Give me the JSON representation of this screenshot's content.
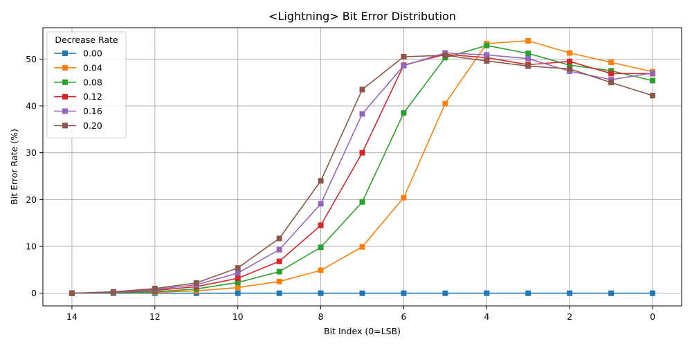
{
  "chart_data": {
    "type": "line",
    "title": "<Lightning> Bit Error Distribution",
    "xlabel": "Bit Index (0=LSB)",
    "ylabel": "Bit Error Rate (%)",
    "x": [
      14,
      13,
      12,
      11,
      10,
      9,
      8,
      7,
      6,
      5,
      4,
      3,
      2,
      1,
      0
    ],
    "xlim": [
      14.7,
      -0.7
    ],
    "ylim": [
      -2.7,
      56.7
    ],
    "xticks": [
      14,
      12,
      10,
      8,
      6,
      4,
      2,
      0
    ],
    "yticks": [
      0,
      10,
      20,
      30,
      40,
      50
    ],
    "grid": true,
    "marker": "square",
    "legend": {
      "title": "Decrease Rate",
      "position": "top-left"
    },
    "series": [
      {
        "name": "0.00",
        "color": "#1f77b4",
        "values": [
          0,
          0,
          0,
          0,
          0,
          0,
          0,
          0,
          0,
          0,
          0,
          0,
          0,
          0,
          0
        ]
      },
      {
        "name": "0.04",
        "color": "#ff7f0e",
        "values": [
          0,
          0.1,
          0.2,
          0.5,
          1.2,
          2.5,
          4.9,
          9.9,
          20.4,
          40.5,
          53.3,
          53.9,
          51.3,
          49.3,
          47.3
        ]
      },
      {
        "name": "0.08",
        "color": "#2ca02c",
        "values": [
          0,
          0.1,
          0.3,
          0.9,
          2.3,
          4.6,
          9.8,
          19.5,
          38.5,
          50.3,
          52.9,
          51.2,
          48.7,
          47.5,
          45.4
        ]
      },
      {
        "name": "0.12",
        "color": "#d62728",
        "values": [
          0,
          0.2,
          0.6,
          1.4,
          3.2,
          6.8,
          14.5,
          30.0,
          48.7,
          51.0,
          50.3,
          48.8,
          49.5,
          46.9,
          46.9
        ]
      },
      {
        "name": "0.16",
        "color": "#9467bd",
        "values": [
          0,
          0.2,
          0.8,
          1.8,
          4.3,
          9.3,
          19.1,
          38.3,
          48.6,
          51.3,
          50.9,
          50.1,
          47.4,
          45.6,
          47.0
        ]
      },
      {
        "name": "0.20",
        "color": "#8c564b",
        "values": [
          0,
          0.3,
          1.0,
          2.2,
          5.4,
          11.7,
          24.0,
          43.5,
          50.5,
          50.8,
          49.6,
          48.5,
          47.9,
          45.0,
          42.2
        ]
      }
    ]
  }
}
